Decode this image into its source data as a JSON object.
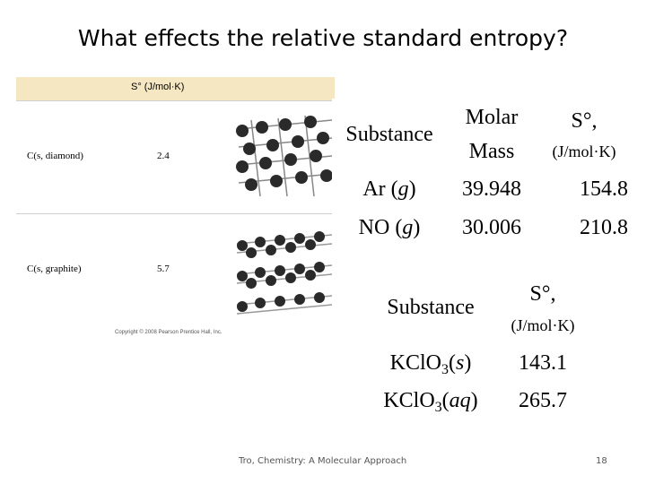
{
  "slide": {
    "title": "What effects the relative standard entropy?",
    "footer_left": "Tro, Chemistry: A Molecular Approach",
    "page_number": "18"
  },
  "figure": {
    "header": "S° (J/mol·K)",
    "rows": [
      {
        "substance": "C(s, diamond)",
        "value": "2.4"
      },
      {
        "substance": "C(s, graphite)",
        "value": "5.7"
      }
    ],
    "copyright": "Copyright © 2008 Pearson Prentice Hall, Inc."
  },
  "table1": {
    "header_substance": "Substance",
    "header_molar_1": "Molar",
    "header_molar_2": "Mass",
    "header_s_1": "S°,",
    "header_s_2": "(J/mol·K)",
    "rows": [
      {
        "name": "Ar",
        "state": "g",
        "molar_mass": "39.948",
        "s": "154.8"
      },
      {
        "name": "NO",
        "state": "g",
        "molar_mass": "30.006",
        "s": "210.8"
      }
    ]
  },
  "table2": {
    "header_substance": "Substance",
    "header_s_1": "S°,",
    "header_s_2": "(J/mol·K)",
    "rows": [
      {
        "formula": "KClO",
        "subscript": "3",
        "state": "s",
        "s": "143.1"
      },
      {
        "formula": "KClO",
        "subscript": "3",
        "state": "aq",
        "s": "265.7"
      }
    ]
  }
}
